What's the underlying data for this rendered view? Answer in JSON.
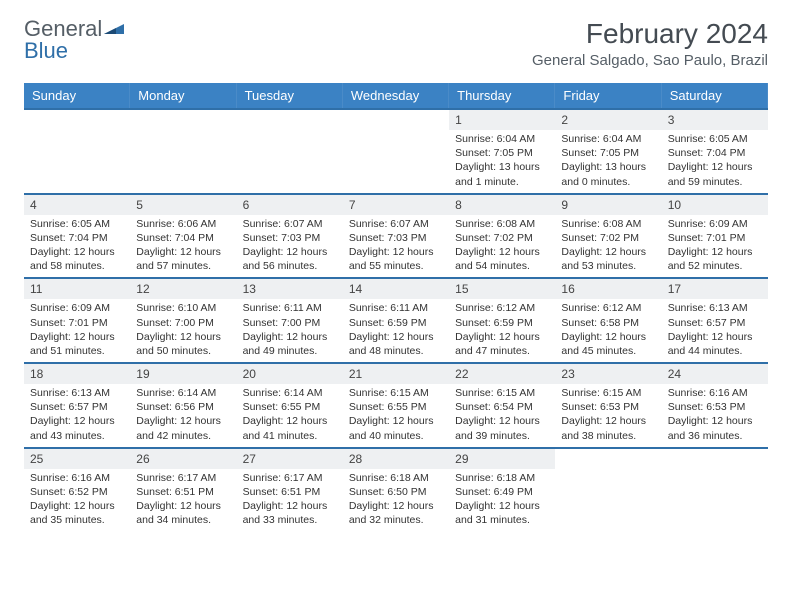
{
  "brand": {
    "name_gray": "General",
    "name_blue": "Blue"
  },
  "title": "February 2024",
  "location": "General Salgado, Sao Paulo, Brazil",
  "colors": {
    "header_bg": "#3b82c4",
    "header_text": "#ffffff",
    "border": "#2f6fa8",
    "daynum_bg": "#eef0f2",
    "text": "#333333",
    "logo_gray": "#555e66",
    "logo_blue": "#2f6fa8"
  },
  "weekdays": [
    "Sunday",
    "Monday",
    "Tuesday",
    "Wednesday",
    "Thursday",
    "Friday",
    "Saturday"
  ],
  "weeks": [
    [
      {
        "empty": true
      },
      {
        "empty": true
      },
      {
        "empty": true
      },
      {
        "empty": true
      },
      {
        "day": "1",
        "sunrise": "Sunrise: 6:04 AM",
        "sunset": "Sunset: 7:05 PM",
        "daylight": "Daylight: 13 hours and 1 minute."
      },
      {
        "day": "2",
        "sunrise": "Sunrise: 6:04 AM",
        "sunset": "Sunset: 7:05 PM",
        "daylight": "Daylight: 13 hours and 0 minutes."
      },
      {
        "day": "3",
        "sunrise": "Sunrise: 6:05 AM",
        "sunset": "Sunset: 7:04 PM",
        "daylight": "Daylight: 12 hours and 59 minutes."
      }
    ],
    [
      {
        "day": "4",
        "sunrise": "Sunrise: 6:05 AM",
        "sunset": "Sunset: 7:04 PM",
        "daylight": "Daylight: 12 hours and 58 minutes."
      },
      {
        "day": "5",
        "sunrise": "Sunrise: 6:06 AM",
        "sunset": "Sunset: 7:04 PM",
        "daylight": "Daylight: 12 hours and 57 minutes."
      },
      {
        "day": "6",
        "sunrise": "Sunrise: 6:07 AM",
        "sunset": "Sunset: 7:03 PM",
        "daylight": "Daylight: 12 hours and 56 minutes."
      },
      {
        "day": "7",
        "sunrise": "Sunrise: 6:07 AM",
        "sunset": "Sunset: 7:03 PM",
        "daylight": "Daylight: 12 hours and 55 minutes."
      },
      {
        "day": "8",
        "sunrise": "Sunrise: 6:08 AM",
        "sunset": "Sunset: 7:02 PM",
        "daylight": "Daylight: 12 hours and 54 minutes."
      },
      {
        "day": "9",
        "sunrise": "Sunrise: 6:08 AM",
        "sunset": "Sunset: 7:02 PM",
        "daylight": "Daylight: 12 hours and 53 minutes."
      },
      {
        "day": "10",
        "sunrise": "Sunrise: 6:09 AM",
        "sunset": "Sunset: 7:01 PM",
        "daylight": "Daylight: 12 hours and 52 minutes."
      }
    ],
    [
      {
        "day": "11",
        "sunrise": "Sunrise: 6:09 AM",
        "sunset": "Sunset: 7:01 PM",
        "daylight": "Daylight: 12 hours and 51 minutes."
      },
      {
        "day": "12",
        "sunrise": "Sunrise: 6:10 AM",
        "sunset": "Sunset: 7:00 PM",
        "daylight": "Daylight: 12 hours and 50 minutes."
      },
      {
        "day": "13",
        "sunrise": "Sunrise: 6:11 AM",
        "sunset": "Sunset: 7:00 PM",
        "daylight": "Daylight: 12 hours and 49 minutes."
      },
      {
        "day": "14",
        "sunrise": "Sunrise: 6:11 AM",
        "sunset": "Sunset: 6:59 PM",
        "daylight": "Daylight: 12 hours and 48 minutes."
      },
      {
        "day": "15",
        "sunrise": "Sunrise: 6:12 AM",
        "sunset": "Sunset: 6:59 PM",
        "daylight": "Daylight: 12 hours and 47 minutes."
      },
      {
        "day": "16",
        "sunrise": "Sunrise: 6:12 AM",
        "sunset": "Sunset: 6:58 PM",
        "daylight": "Daylight: 12 hours and 45 minutes."
      },
      {
        "day": "17",
        "sunrise": "Sunrise: 6:13 AM",
        "sunset": "Sunset: 6:57 PM",
        "daylight": "Daylight: 12 hours and 44 minutes."
      }
    ],
    [
      {
        "day": "18",
        "sunrise": "Sunrise: 6:13 AM",
        "sunset": "Sunset: 6:57 PM",
        "daylight": "Daylight: 12 hours and 43 minutes."
      },
      {
        "day": "19",
        "sunrise": "Sunrise: 6:14 AM",
        "sunset": "Sunset: 6:56 PM",
        "daylight": "Daylight: 12 hours and 42 minutes."
      },
      {
        "day": "20",
        "sunrise": "Sunrise: 6:14 AM",
        "sunset": "Sunset: 6:55 PM",
        "daylight": "Daylight: 12 hours and 41 minutes."
      },
      {
        "day": "21",
        "sunrise": "Sunrise: 6:15 AM",
        "sunset": "Sunset: 6:55 PM",
        "daylight": "Daylight: 12 hours and 40 minutes."
      },
      {
        "day": "22",
        "sunrise": "Sunrise: 6:15 AM",
        "sunset": "Sunset: 6:54 PM",
        "daylight": "Daylight: 12 hours and 39 minutes."
      },
      {
        "day": "23",
        "sunrise": "Sunrise: 6:15 AM",
        "sunset": "Sunset: 6:53 PM",
        "daylight": "Daylight: 12 hours and 38 minutes."
      },
      {
        "day": "24",
        "sunrise": "Sunrise: 6:16 AM",
        "sunset": "Sunset: 6:53 PM",
        "daylight": "Daylight: 12 hours and 36 minutes."
      }
    ],
    [
      {
        "day": "25",
        "sunrise": "Sunrise: 6:16 AM",
        "sunset": "Sunset: 6:52 PM",
        "daylight": "Daylight: 12 hours and 35 minutes."
      },
      {
        "day": "26",
        "sunrise": "Sunrise: 6:17 AM",
        "sunset": "Sunset: 6:51 PM",
        "daylight": "Daylight: 12 hours and 34 minutes."
      },
      {
        "day": "27",
        "sunrise": "Sunrise: 6:17 AM",
        "sunset": "Sunset: 6:51 PM",
        "daylight": "Daylight: 12 hours and 33 minutes."
      },
      {
        "day": "28",
        "sunrise": "Sunrise: 6:18 AM",
        "sunset": "Sunset: 6:50 PM",
        "daylight": "Daylight: 12 hours and 32 minutes."
      },
      {
        "day": "29",
        "sunrise": "Sunrise: 6:18 AM",
        "sunset": "Sunset: 6:49 PM",
        "daylight": "Daylight: 12 hours and 31 minutes."
      },
      {
        "empty": true
      },
      {
        "empty": true
      }
    ]
  ]
}
